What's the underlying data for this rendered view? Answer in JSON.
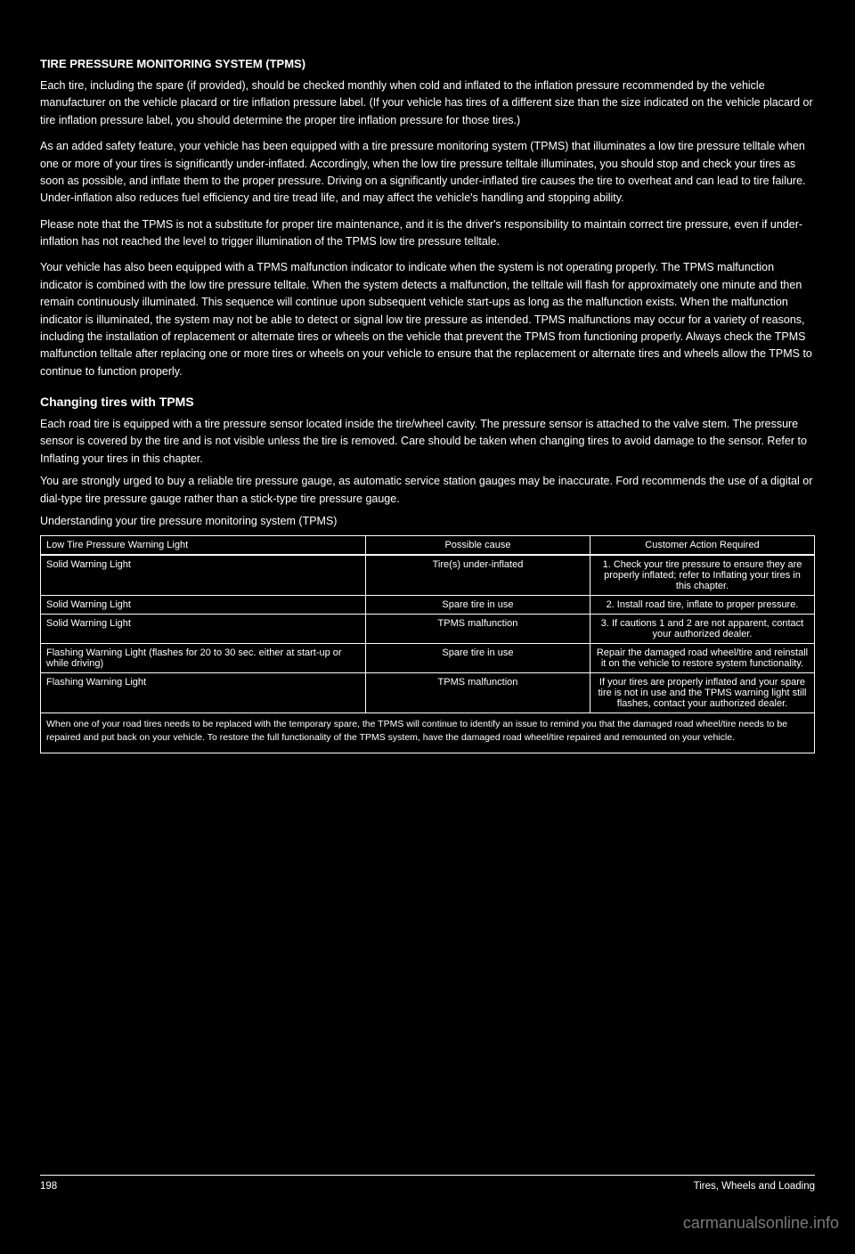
{
  "colors": {
    "background": "#000000",
    "text": "#ffffff",
    "rule": "#ffffff",
    "watermark": "#7a7a7a"
  },
  "section1": {
    "title": "TIRE PRESSURE MONITORING SYSTEM (TPMS)",
    "p1": "Each tire, including the spare (if provided), should be checked monthly when cold and inflated to the inflation pressure recommended by the vehicle manufacturer on the vehicle placard or tire inflation pressure label. (If your vehicle has tires of a different size than the size indicated on the vehicle placard or tire inflation pressure label, you should determine the proper tire inflation pressure for those tires.)",
    "p2": "As an added safety feature, your vehicle has been equipped with a tire pressure monitoring system (TPMS) that illuminates a low tire pressure telltale when one or more of your tires is significantly under-inflated. Accordingly, when the low tire pressure telltale illuminates, you should stop and check your tires as soon as possible, and inflate them to the proper pressure. Driving on a significantly under-inflated tire causes the tire to overheat and can lead to tire failure. Under-inflation also reduces fuel efficiency and tire tread life, and may affect the vehicle's handling and stopping ability.",
    "p3": "Please note that the TPMS is not a substitute for proper tire maintenance, and it is the driver's responsibility to maintain correct tire pressure, even if under-inflation has not reached the level to trigger illumination of the TPMS low tire pressure telltale.",
    "p4": "Your vehicle has also been equipped with a TPMS malfunction indicator to indicate when the system is not operating properly. The TPMS malfunction indicator is combined with the low tire pressure telltale. When the system detects a malfunction, the telltale will flash for approximately one minute and then remain continuously illuminated. This sequence will continue upon subsequent vehicle start-ups as long as the malfunction exists. When the malfunction indicator is illuminated, the system may not be able to detect or signal low tire pressure as intended. TPMS malfunctions may occur for a variety of reasons, including the installation of replacement or alternate tires or wheels on the vehicle that prevent the TPMS from functioning properly. Always check the TPMS malfunction telltale after replacing one or more tires or wheels on your vehicle to ensure that the replacement or alternate tires and wheels allow the TPMS to continue to function properly."
  },
  "section2": {
    "heading": "Changing tires with TPMS",
    "p1": "Each road tire is equipped with a tire pressure sensor located inside the tire/wheel cavity. The pressure sensor is attached to the valve stem. The pressure sensor is covered by the tire and is not visible unless the tire is removed. Care should be taken when changing tires to avoid damage to the sensor. Refer to Inflating your tires in this chapter.",
    "p2": "You are strongly urged to buy a reliable tire pressure gauge, as automatic service station gauges may be inaccurate. Ford recommends the use of a digital or dial-type tire pressure gauge rather than a stick-type tire pressure gauge.",
    "p3": "Understanding your tire pressure monitoring system (TPMS)"
  },
  "table": {
    "columns": [
      "Low Tire Pressure Warning Light",
      "Possible cause",
      "Customer Action Required"
    ],
    "col_widths": [
      "42%",
      "29%",
      "29%"
    ],
    "rows": [
      [
        "Solid Warning Light",
        "Tire(s) under-inflated",
        "1. Check your tire pressure to ensure they are properly inflated; refer to Inflating your tires in this chapter."
      ],
      [
        "Solid Warning Light",
        "Spare tire in use",
        "2. Install road tire, inflate to proper pressure."
      ],
      [
        "Solid Warning Light",
        "TPMS malfunction",
        "3. If cautions 1 and 2 are not apparent, contact your authorized dealer."
      ],
      [
        "Flashing Warning Light (flashes for 20 to 30 sec. either at start-up or while driving)",
        "Spare tire in use",
        "Repair the damaged road wheel/tire and reinstall it on the vehicle to restore system functionality."
      ],
      [
        "Flashing Warning Light",
        "TPMS malfunction",
        "If your tires are properly inflated and your spare tire is not in use and the TPMS warning light still flashes, contact your authorized dealer."
      ]
    ],
    "note": "When one of your road tires needs to be replaced with the temporary spare, the TPMS will continue to identify an issue to remind you that the damaged road wheel/tire needs to be repaired and put back on your vehicle. To restore the full functionality of the TPMS system, have the damaged road wheel/tire repaired and remounted on your vehicle."
  },
  "footer": {
    "page": "198",
    "section": "Tires, Wheels and Loading"
  },
  "watermark": "carmanualsonline.info"
}
